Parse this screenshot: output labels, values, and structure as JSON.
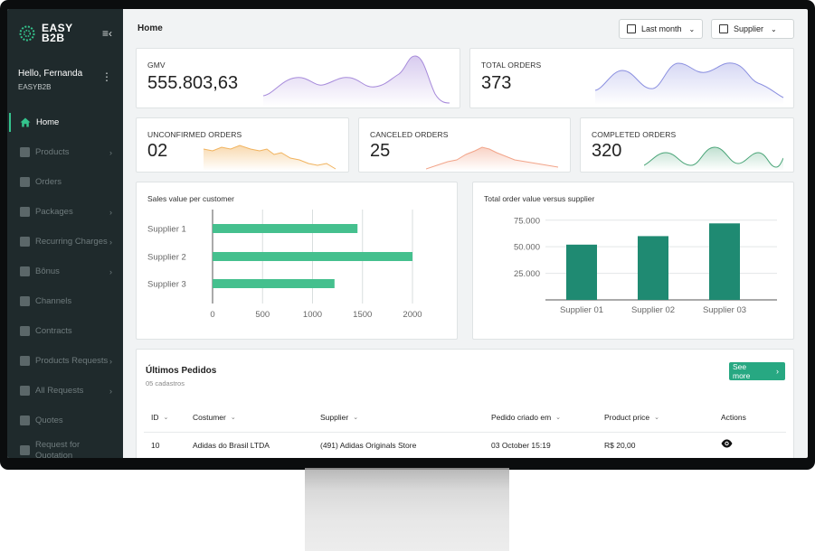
{
  "brand": {
    "name_line1": "EASY",
    "name_line2": "B2B",
    "accent": "#34c48d"
  },
  "user": {
    "greeting": "Hello, Fernanda",
    "org": "EASYB2B"
  },
  "sidebar": {
    "items": [
      {
        "label": "Home",
        "icon": "home-icon",
        "active": true,
        "has_chevron": false
      },
      {
        "label": "Products",
        "icon": "products-icon",
        "has_chevron": true
      },
      {
        "label": "Orders",
        "icon": "cart-icon",
        "has_chevron": false
      },
      {
        "label": "Packages",
        "icon": "folder-icon",
        "has_chevron": true
      },
      {
        "label": "Recurring Charges",
        "icon": "recurring-icon",
        "has_chevron": true
      },
      {
        "label": "Bônus",
        "icon": "bonus-icon",
        "has_chevron": true
      },
      {
        "label": "Channels",
        "icon": "channels-icon",
        "has_chevron": false
      },
      {
        "label": "Contracts",
        "icon": "contracts-icon",
        "has_chevron": false
      },
      {
        "label": "Products Requests",
        "icon": "requests-icon",
        "has_chevron": true
      },
      {
        "label": "All Requests",
        "icon": "folder-icon",
        "has_chevron": true
      },
      {
        "label": "Quotes",
        "icon": "quotes-icon",
        "has_chevron": false
      },
      {
        "label": "Request for Quotation",
        "icon": "rfq-icon",
        "has_chevron": false
      }
    ]
  },
  "header": {
    "title": "Home",
    "period_filter": "Last month",
    "supplier_filter": "Supplier"
  },
  "kpis": {
    "gmv": {
      "label": "GMV",
      "value": "555.803,63",
      "color": "#a78bdb"
    },
    "total_orders": {
      "label": "TOTAL ORDERS",
      "value": "373",
      "color": "#8a8fe0"
    },
    "unconfirmed": {
      "label": "UNCONFIRMED ORDERS",
      "value": "02",
      "color": "#f1b35e"
    },
    "canceled": {
      "label": "CANCELED ORDERS",
      "value": "25",
      "color": "#f2a58a"
    },
    "completed": {
      "label": "COMPLETED ORDERS",
      "value": "320",
      "color": "#4aa578"
    }
  },
  "charts": {
    "sales_per_customer": {
      "title": "Sales value per customer",
      "chart_data": {
        "type": "bar",
        "orientation": "horizontal",
        "categories": [
          "Supplier 1",
          "Supplier 2",
          "Supplier 3"
        ],
        "values": [
          1450,
          2000,
          1220
        ],
        "xlim": [
          0,
          2000
        ],
        "xticks": [
          "0",
          "500",
          "1000",
          "1500",
          "2000"
        ],
        "color": "#45c08e"
      }
    },
    "order_value_vs_supplier": {
      "title": "Total order value versus supplier",
      "chart_data": {
        "type": "bar",
        "categories": [
          "Supplier 01",
          "Supplier 02",
          "Supplier 03"
        ],
        "values": [
          52000,
          60000,
          72000
        ],
        "ylim": [
          0,
          85000
        ],
        "yticks": [
          "25.000",
          "50.000",
          "75.000"
        ],
        "color": "#1f8a72"
      }
    }
  },
  "table": {
    "title": "Últimos Pedidos",
    "subtitle": "05 cadastros",
    "see_more": "See more",
    "columns": [
      "ID",
      "Costumer",
      "Supplier",
      "Pedido criado em",
      "Product price",
      "Actions"
    ],
    "rows": [
      {
        "id": "10",
        "customer": "Adidas do Brasil LTDA",
        "supplier": "(491) Adidas Originals Store",
        "created": "03 October 15:19",
        "price": "R$ 20,00"
      }
    ]
  }
}
